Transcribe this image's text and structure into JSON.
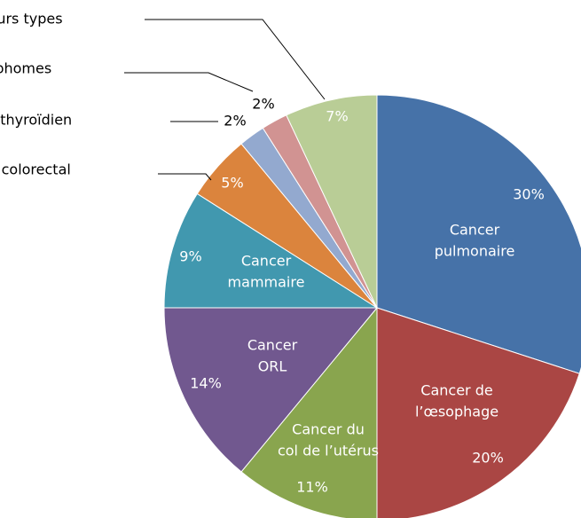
{
  "chart_data": {
    "type": "pie",
    "categories": [
      [
        "Cancer",
        "pulmonaire"
      ],
      [
        "Cancer de",
        "l’œsophage"
      ],
      [
        "Cancer du",
        "col de l’utérus"
      ],
      [
        "Cancer",
        "ORL"
      ],
      [
        "Cancer",
        "mammaire"
      ],
      [
        "Cancer colorectal"
      ],
      [
        "Cancer thyroïdien"
      ],
      [
        "Lymphomes"
      ],
      [
        "Plusieurs types"
      ]
    ],
    "values": [
      30,
      20,
      11,
      14,
      9,
      5,
      2,
      2,
      7
    ],
    "value_labels": [
      "30%",
      "20%",
      "11%",
      "14%",
      "9%",
      "5%",
      "2%",
      "2%",
      "7%"
    ],
    "colors": [
      "#4672a8",
      "#aa4644",
      "#89a54e",
      "#71588f",
      "#4198af",
      "#db843d",
      "#93a9cf",
      "#d19392",
      "#b9cd96"
    ]
  }
}
